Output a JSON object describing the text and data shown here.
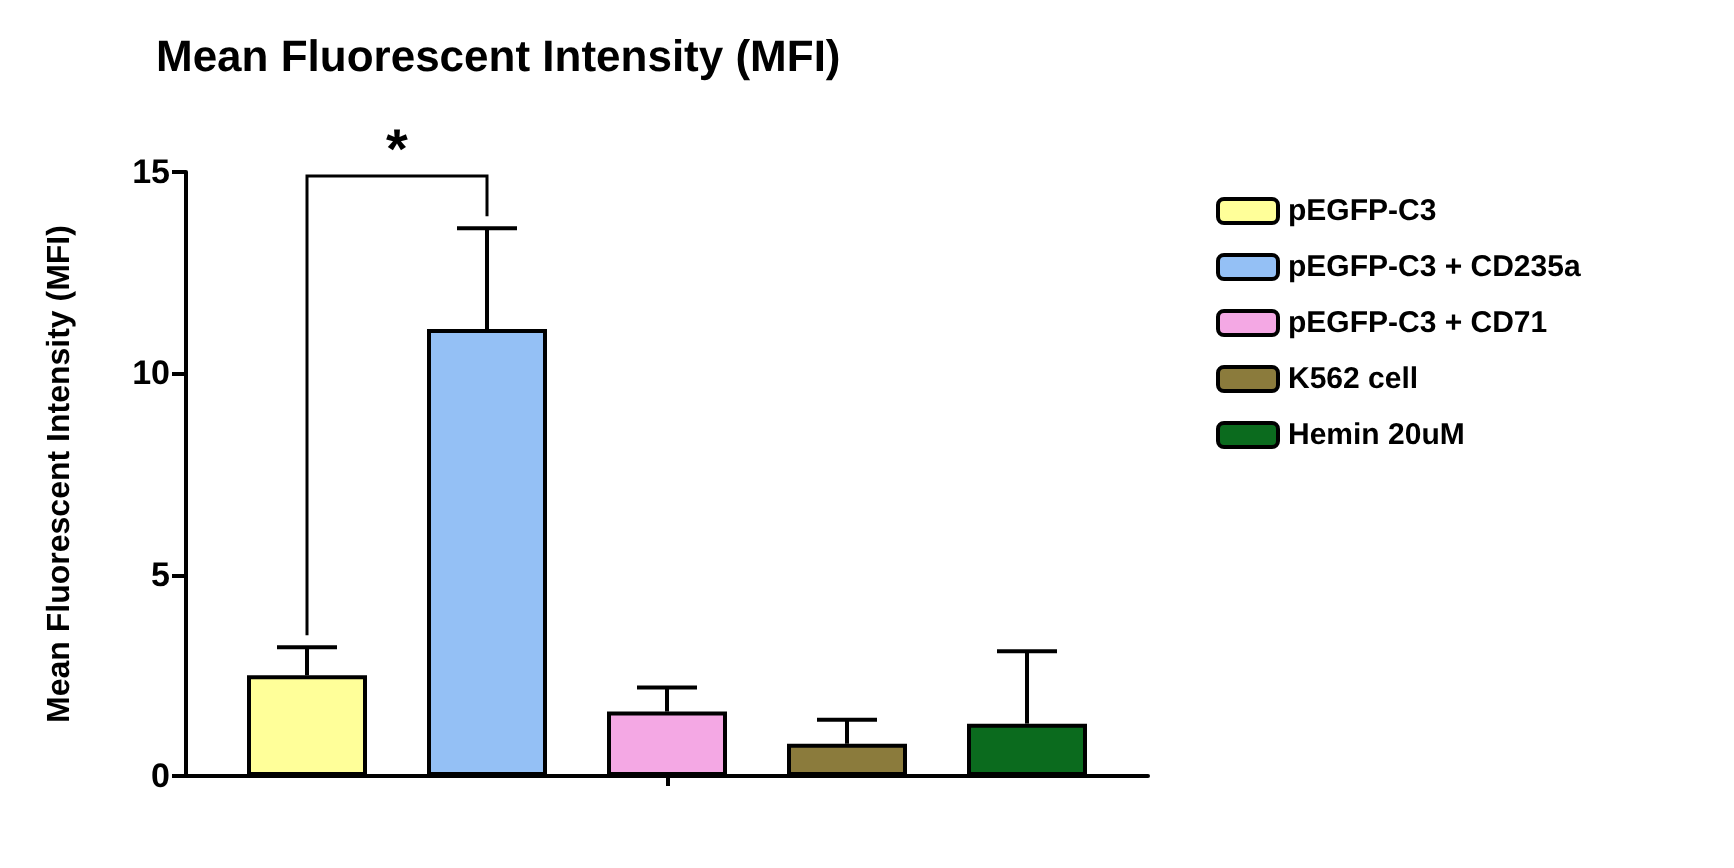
{
  "chart_data": {
    "type": "bar",
    "title": "Mean Fluorescent Intensity (MFI)",
    "ylabel": "Mean Fluorescent Intensity (MFI)",
    "categories": [
      null
    ],
    "series": [
      {
        "name": "pEGFP-C3",
        "color": "#ffff99",
        "values": [
          2.5
        ],
        "errors": [
          [
            2.5,
            3.2
          ]
        ]
      },
      {
        "name": "pEGFP-C3 + CD235a",
        "color": "#94c0f5",
        "values": [
          11.1
        ],
        "errors": [
          [
            11.1,
            13.6
          ]
        ]
      },
      {
        "name": "pEGFP-C3 + CD71",
        "color": "#f4a8e4",
        "values": [
          1.6
        ],
        "errors": [
          [
            1.6,
            2.2
          ]
        ]
      },
      {
        "name": "K562 cell",
        "color": "#8b7b3c",
        "values": [
          0.8
        ],
        "errors": [
          [
            0.8,
            1.4
          ]
        ]
      },
      {
        "name": "Hemin 20uM",
        "color": "#0b6b1e",
        "values": [
          1.3
        ],
        "errors": [
          [
            1.3,
            3.1
          ]
        ]
      }
    ],
    "ylim": [
      0,
      15
    ],
    "yticks": [
      0,
      5,
      10,
      15
    ],
    "grid": false,
    "legend": "right",
    "annotations": [
      "*"
    ]
  }
}
